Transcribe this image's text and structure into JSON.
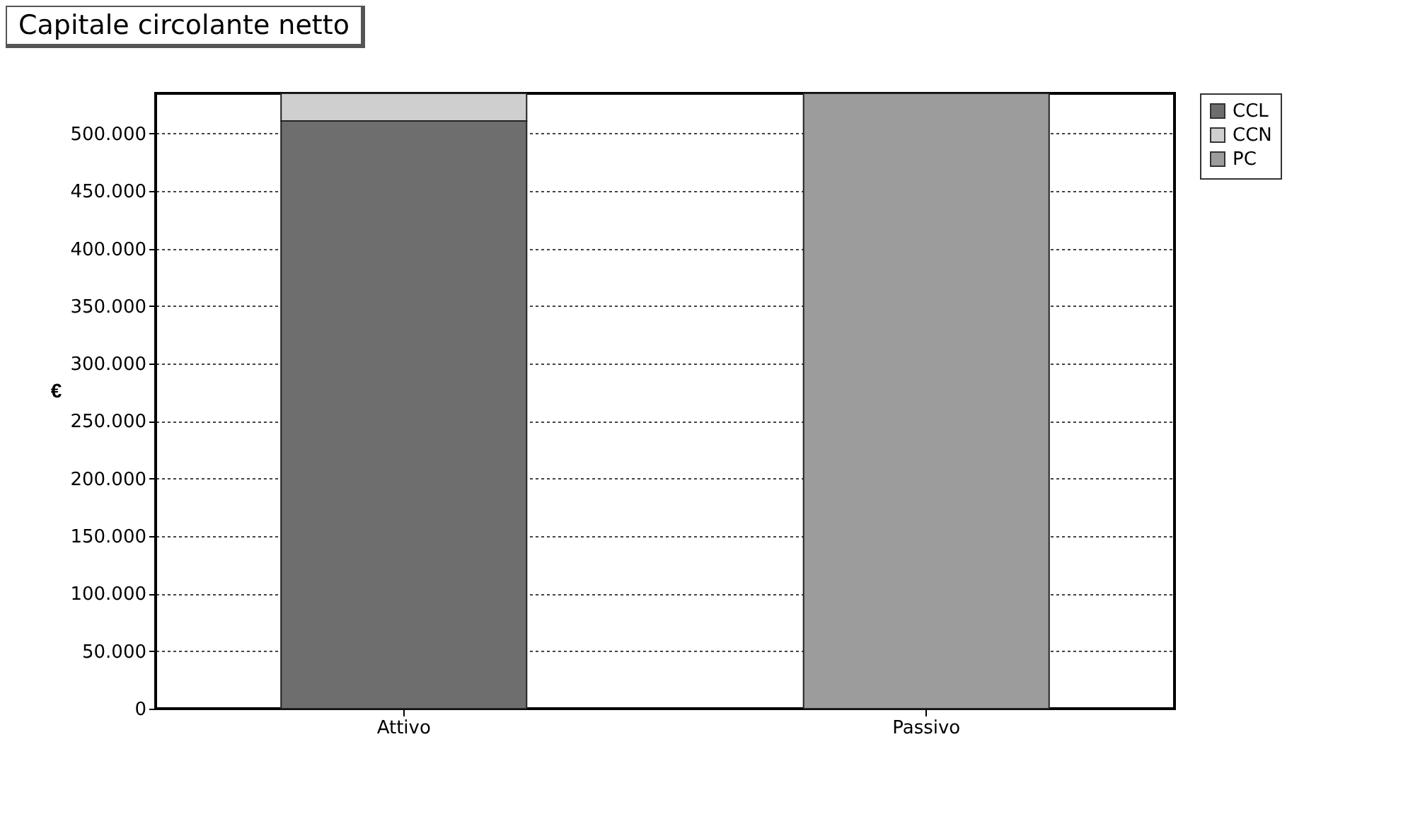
{
  "chart_data": {
    "type": "bar",
    "title": "Capitale circolante netto",
    "ylabel": "€",
    "stacked": true,
    "categories": [
      "Attivo",
      "Passivo"
    ],
    "series": [
      {
        "name": "CCL",
        "color": "#6e6e6e",
        "values": [
          511000,
          null
        ]
      },
      {
        "name": "CCN",
        "color": "#cfcfcf",
        "values": [
          24000,
          null
        ]
      },
      {
        "name": "PC",
        "color": "#9c9c9c",
        "values": [
          null,
          535000
        ]
      }
    ],
    "ylim": [
      0,
      535000
    ],
    "yticks": [
      0,
      {
        "value": 50000,
        "label": "50.000"
      },
      {
        "value": 100000,
        "label": "100.000"
      },
      {
        "value": 150000,
        "label": "150.000"
      },
      {
        "value": 200000,
        "label": "200.000"
      },
      {
        "value": 250000,
        "label": "250.000"
      },
      {
        "value": 300000,
        "label": "300.000"
      },
      {
        "value": 350000,
        "label": "350.000"
      },
      {
        "value": 400000,
        "label": "400.000"
      },
      {
        "value": 450000,
        "label": "450.000"
      },
      {
        "value": 500000,
        "label": "500.000"
      }
    ],
    "grid": "y",
    "legend": "top right"
  }
}
